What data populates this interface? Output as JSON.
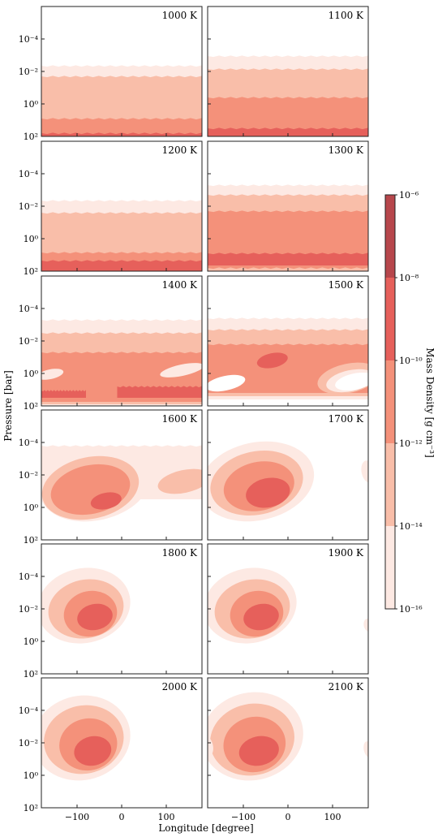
{
  "chart_data": {
    "type": "contour",
    "xlabel": "Longitude [degree]",
    "ylabel": "Pressure [bar]",
    "xticks": [
      "−100",
      "0",
      "100"
    ],
    "xtick_values": [
      -100,
      0,
      100
    ],
    "xlim": [
      -180,
      180
    ],
    "yscale": "log",
    "yinvert": true,
    "yticks": [
      "10⁻⁴",
      "10⁻²",
      "10⁰",
      "10²"
    ],
    "ytick_values": [
      0.0001,
      0.01,
      1,
      100
    ],
    "ylim_bar": [
      100,
      1e-06
    ],
    "colorbar": {
      "label": "Mass Density [g cm⁻³]",
      "levels": [
        -16,
        -14,
        -12,
        -10,
        -8,
        -6
      ],
      "tick_labels": [
        "10⁻¹⁶",
        "10⁻¹⁴",
        "10⁻¹²",
        "10⁻¹⁰",
        "10⁻⁸",
        "10⁻⁶"
      ],
      "colors": [
        "#fde9e3",
        "#f9bea9",
        "#f4917a",
        "#e6605b",
        "#b7474c"
      ]
    },
    "panels": [
      {
        "title": "1000 K",
        "layers": [
          {
            "type": "band",
            "level": 0,
            "top": -2.35,
            "bottom": 2
          },
          {
            "type": "band",
            "level": 1,
            "top": -1.7,
            "bottom": 2
          },
          {
            "type": "band",
            "level": 2,
            "top": 0.9,
            "bottom": 2
          },
          {
            "type": "band",
            "level": 3,
            "top": 1.8,
            "bottom": 2
          }
        ]
      },
      {
        "title": "1100 K",
        "layers": [
          {
            "type": "band",
            "level": 0,
            "top": -2.95,
            "bottom": 2
          },
          {
            "type": "band",
            "level": 1,
            "top": -2.15,
            "bottom": 2
          },
          {
            "type": "band",
            "level": 2,
            "top": -0.4,
            "bottom": 2
          },
          {
            "type": "band",
            "level": 3,
            "top": 1.5,
            "bottom": 2
          }
        ]
      },
      {
        "title": "1200 K",
        "layers": [
          {
            "type": "band",
            "level": 0,
            "top": -2.35,
            "bottom": 2
          },
          {
            "type": "band",
            "level": 1,
            "top": -1.6,
            "bottom": 2
          },
          {
            "type": "band",
            "level": 2,
            "top": 0.85,
            "bottom": 2
          },
          {
            "type": "band",
            "level": 3,
            "top": 1.35,
            "bottom": 2
          }
        ]
      },
      {
        "title": "1300 K",
        "layers": [
          {
            "type": "band",
            "level": 0,
            "top": -3.3,
            "bottom": 2
          },
          {
            "type": "band",
            "level": 1,
            "top": -2.7,
            "bottom": 2
          },
          {
            "type": "band",
            "level": 2,
            "top": -1.7,
            "bottom": 2
          },
          {
            "type": "band",
            "level": 3,
            "top": 0.9,
            "bottom": 1.65
          },
          {
            "type": "band",
            "level": 1,
            "top": 1.8,
            "bottom": 2
          }
        ]
      },
      {
        "title": "1400 K",
        "layers": [
          {
            "type": "band",
            "level": 0,
            "top": -3.3,
            "bottom": 2
          },
          {
            "type": "band",
            "level": 1,
            "top": -2.5,
            "bottom": 1.9
          },
          {
            "type": "band",
            "level": 2,
            "top": -1.3,
            "bottom": 1.75
          },
          {
            "type": "blob",
            "level": 0,
            "lon": -160,
            "logp": 0.05,
            "rlon": 30,
            "rlogp": 0.3
          },
          {
            "type": "blob",
            "level": 0,
            "lon": 135,
            "logp": -0.2,
            "rlon": 50,
            "rlogp": 0.35
          },
          {
            "type": "band",
            "level": 3,
            "top": 1.05,
            "bottom": 1.5,
            "lon0": -180,
            "lon1": -80
          },
          {
            "type": "band",
            "level": 3,
            "top": 0.8,
            "bottom": 1.5,
            "lon0": -10,
            "lon1": 180
          }
        ]
      },
      {
        "title": "1500 K",
        "layers": [
          {
            "type": "band",
            "level": 0,
            "top": -3.4,
            "bottom": 1.6
          },
          {
            "type": "band",
            "level": 1,
            "top": -2.7,
            "bottom": 1.4
          },
          {
            "type": "band",
            "level": 2,
            "top": -1.8,
            "bottom": 1.2
          },
          {
            "type": "blob",
            "level": 1,
            "lon": 135,
            "logp": 0.3,
            "rlon": 70,
            "rlogp": 0.9
          },
          {
            "type": "blob",
            "level": 0,
            "lon": 140,
            "logp": 0.45,
            "rlon": 55,
            "rlogp": 0.65
          },
          {
            "type": "blob",
            "level": -1,
            "lon": 150,
            "logp": 0.5,
            "rlon": 45,
            "rlogp": 0.5
          },
          {
            "type": "blob",
            "level": -1,
            "lon": -140,
            "logp": 0.6,
            "rlon": 45,
            "rlogp": 0.45
          },
          {
            "type": "blob",
            "level": 3,
            "lon": -35,
            "logp": -0.8,
            "rlon": 35,
            "rlogp": 0.45
          }
        ]
      },
      {
        "title": "1600 K",
        "layers": [
          {
            "type": "band",
            "level": 0,
            "top": -3.8,
            "bottom": -0.5,
            "lon0": -180,
            "lon1": 180
          },
          {
            "type": "blob",
            "level": 0,
            "lon": -60,
            "logp": -1.4,
            "rlon": 125,
            "rlogp": 2.2
          },
          {
            "type": "blob",
            "level": 1,
            "lon": -70,
            "logp": -1.2,
            "rlon": 110,
            "rlogp": 1.9
          },
          {
            "type": "blob",
            "level": 1,
            "lon": 140,
            "logp": -1.6,
            "rlon": 60,
            "rlogp": 0.7
          },
          {
            "type": "blob",
            "level": 2,
            "lon": -70,
            "logp": -1.1,
            "rlon": 90,
            "rlogp": 1.5
          },
          {
            "type": "blob",
            "level": 3,
            "lon": -35,
            "logp": -0.4,
            "rlon": 35,
            "rlogp": 0.5
          }
        ]
      },
      {
        "title": "1700 K",
        "layers": [
          {
            "type": "blob",
            "level": 0,
            "lon": -70,
            "logp": -1.6,
            "rlon": 130,
            "rlogp": 2.4
          },
          {
            "type": "blob",
            "level": 1,
            "lon": -70,
            "logp": -1.5,
            "rlon": 105,
            "rlogp": 1.95
          },
          {
            "type": "blob",
            "level": 2,
            "lon": -65,
            "logp": -1.3,
            "rlon": 80,
            "rlogp": 1.5
          },
          {
            "type": "blob",
            "level": 3,
            "lon": -45,
            "logp": -0.9,
            "rlon": 50,
            "rlogp": 0.9
          },
          {
            "type": "blob",
            "level": 0,
            "lon": 180,
            "logp": -2.2,
            "rlon": 15,
            "rlogp": 0.7
          }
        ]
      },
      {
        "title": "1800 K",
        "layers": [
          {
            "type": "blob",
            "level": 0,
            "lon": -85,
            "logp": -2.2,
            "rlon": 105,
            "rlogp": 2.3
          },
          {
            "type": "blob",
            "level": 1,
            "lon": -80,
            "logp": -2.0,
            "rlon": 85,
            "rlogp": 1.8
          },
          {
            "type": "blob",
            "level": 2,
            "lon": -70,
            "logp": -1.7,
            "rlon": 60,
            "rlogp": 1.4
          },
          {
            "type": "blob",
            "level": 3,
            "lon": -60,
            "logp": -1.5,
            "rlon": 40,
            "rlogp": 0.8
          }
        ]
      },
      {
        "title": "1900 K",
        "layers": [
          {
            "type": "blob",
            "level": 0,
            "lon": -85,
            "logp": -2.2,
            "rlon": 105,
            "rlogp": 2.3
          },
          {
            "type": "blob",
            "level": 1,
            "lon": -80,
            "logp": -2.0,
            "rlon": 85,
            "rlogp": 1.8
          },
          {
            "type": "blob",
            "level": 2,
            "lon": -70,
            "logp": -1.7,
            "rlon": 60,
            "rlogp": 1.4
          },
          {
            "type": "blob",
            "level": 3,
            "lon": -60,
            "logp": -1.5,
            "rlon": 40,
            "rlogp": 0.8
          },
          {
            "type": "blob",
            "level": 0,
            "lon": 180,
            "logp": -1.0,
            "rlon": 10,
            "rlogp": 0.4
          }
        ]
      },
      {
        "title": "2000 K",
        "layers": [
          {
            "type": "blob",
            "level": 0,
            "lon": -90,
            "logp": -2.3,
            "rlon": 110,
            "rlogp": 2.6
          },
          {
            "type": "blob",
            "level": 1,
            "lon": -85,
            "logp": -2.2,
            "rlon": 90,
            "rlogp": 2.1
          },
          {
            "type": "blob",
            "level": 2,
            "lon": -75,
            "logp": -1.9,
            "rlon": 65,
            "rlogp": 1.6
          },
          {
            "type": "blob",
            "level": 3,
            "lon": -65,
            "logp": -1.5,
            "rlon": 42,
            "rlogp": 0.9
          }
        ]
      },
      {
        "title": "2100 K",
        "layers": [
          {
            "type": "blob",
            "level": 0,
            "lon": -80,
            "logp": -2.4,
            "rlon": 115,
            "rlogp": 2.7
          },
          {
            "type": "blob",
            "level": 1,
            "lon": -80,
            "logp": -2.2,
            "rlon": 95,
            "rlogp": 2.2
          },
          {
            "type": "blob",
            "level": 2,
            "lon": -75,
            "logp": -1.9,
            "rlon": 70,
            "rlogp": 1.7
          },
          {
            "type": "blob",
            "level": 3,
            "lon": -65,
            "logp": -1.5,
            "rlon": 45,
            "rlogp": 0.9
          },
          {
            "type": "blob",
            "level": 0,
            "lon": -180,
            "logp": -1.8,
            "rlon": 12,
            "rlogp": 0.6
          },
          {
            "type": "blob",
            "level": 0,
            "lon": 180,
            "logp": -1.6,
            "rlon": 10,
            "rlogp": 0.5
          }
        ]
      }
    ]
  }
}
